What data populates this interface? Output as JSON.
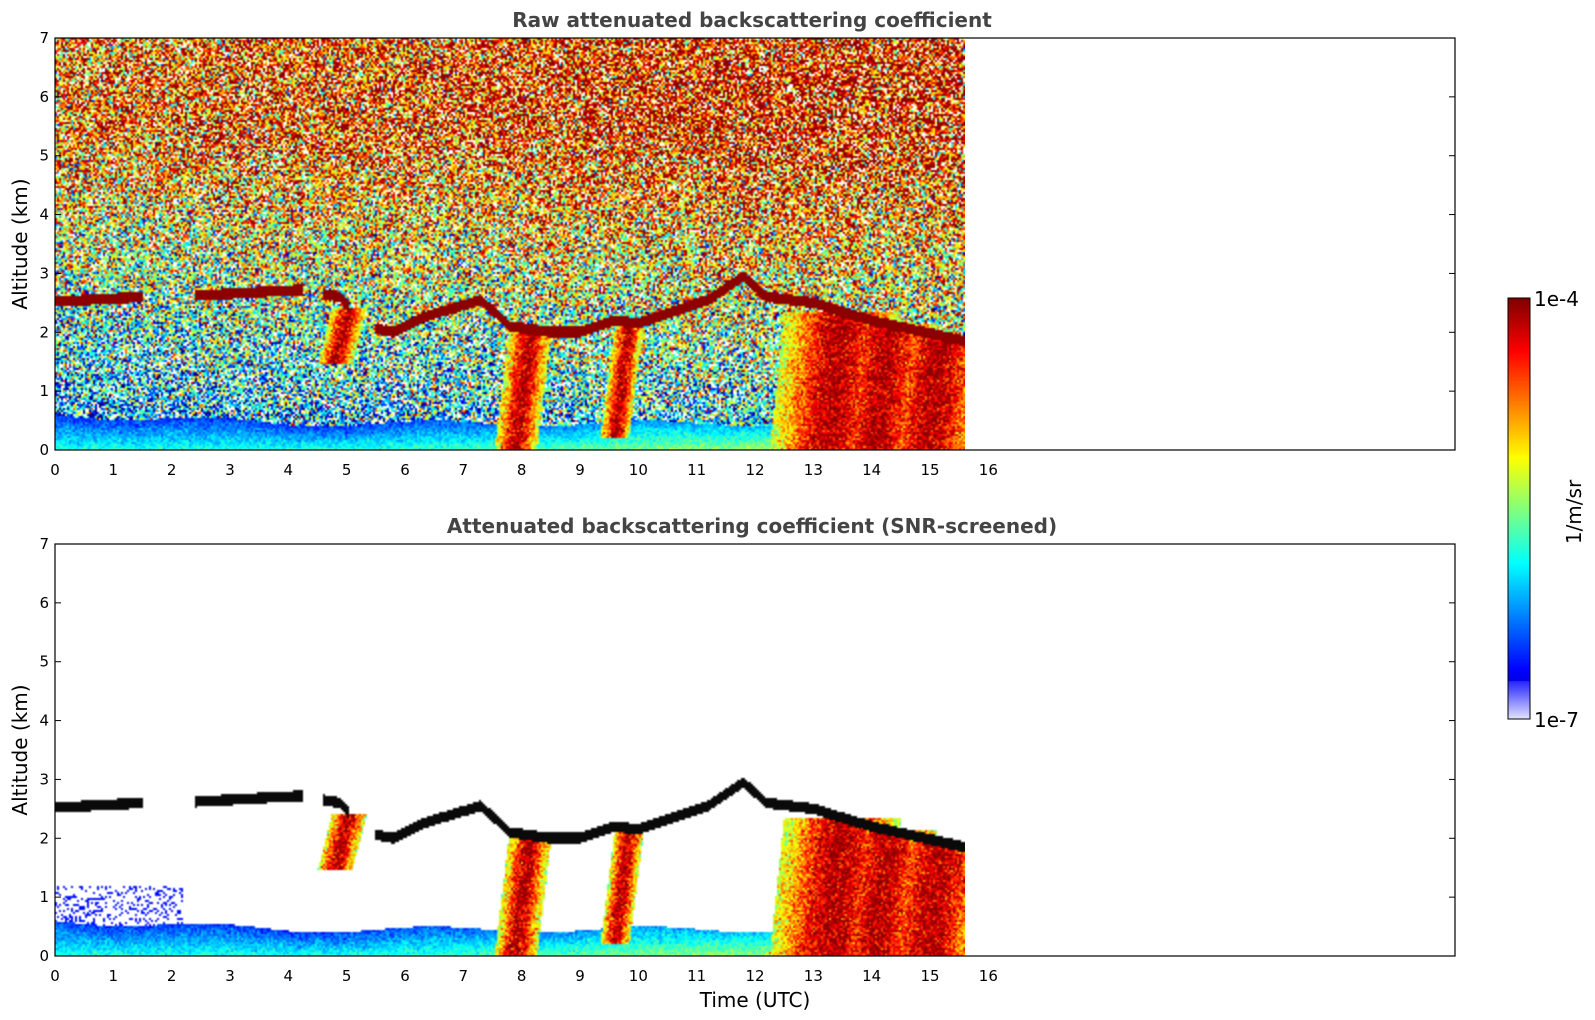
{
  "chart_data": [
    {
      "type": "heatmap",
      "title": "Raw attenuated backscattering coefficient",
      "xlabel": "",
      "ylabel": "Altitude (km)",
      "xlim": [
        0,
        24
      ],
      "ylim": [
        0,
        7
      ],
      "x_ticks": [
        "0",
        "1",
        "2",
        "3",
        "4",
        "5",
        "6",
        "7",
        "8",
        "9",
        "10",
        "11",
        "12",
        "13",
        "14",
        "15",
        "16"
      ],
      "y_ticks": [
        "0",
        "1",
        "2",
        "3",
        "4",
        "5",
        "6",
        "7"
      ],
      "data_end_time": 15.6,
      "screened": false
    },
    {
      "type": "heatmap",
      "title": "Attenuated backscattering coefficient (SNR-screened)",
      "xlabel": "Time (UTC)",
      "ylabel": "Altitude (km)",
      "xlim": [
        0,
        24
      ],
      "ylim": [
        0,
        7
      ],
      "x_ticks": [
        "0",
        "1",
        "2",
        "3",
        "4",
        "5",
        "6",
        "7",
        "8",
        "9",
        "10",
        "11",
        "12",
        "13",
        "14",
        "15",
        "16"
      ],
      "y_ticks": [
        "0",
        "1",
        "2",
        "3",
        "4",
        "5",
        "6",
        "7"
      ],
      "data_end_time": 15.6,
      "screened": true
    }
  ],
  "colorbar": {
    "label": "1/m/sr",
    "max_label": "1e-4",
    "min_label": "1e-7",
    "colormap": "jet"
  }
}
